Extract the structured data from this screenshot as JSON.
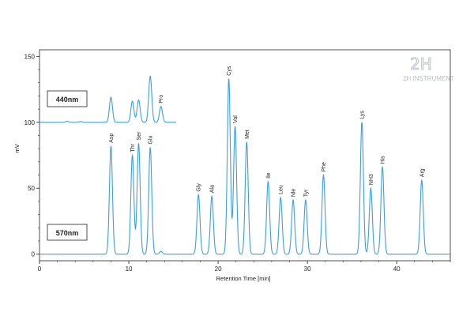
{
  "chart_data": {
    "type": "line",
    "title": "",
    "xlabel": "Retention Time [min]",
    "ylabel": "mV",
    "xlim": [
      0,
      46
    ],
    "ylim": [
      -5,
      155
    ],
    "x_ticks": [
      0,
      10,
      20,
      30,
      40
    ],
    "y_ticks": [
      0,
      50,
      100,
      150
    ],
    "grid": false,
    "legend": "none",
    "series": [
      {
        "name": "570nm",
        "color": "#3a9ee8",
        "baseline": 0,
        "peaks": [
          {
            "label": "Asp",
            "rt": 8.0,
            "height": 82
          },
          {
            "label": "Thr",
            "rt": 10.4,
            "height": 75
          },
          {
            "label": "Ser",
            "rt": 11.1,
            "height": 84
          },
          {
            "label": "Glu",
            "rt": 12.4,
            "height": 81
          },
          {
            "label": "",
            "rt": 13.6,
            "height": 2
          },
          {
            "label": "Gly",
            "rt": 17.8,
            "height": 45
          },
          {
            "label": "Ala",
            "rt": 19.3,
            "height": 44
          },
          {
            "label": "Cys",
            "rt": 21.2,
            "height": 133
          },
          {
            "label": "Val",
            "rt": 21.9,
            "height": 97
          },
          {
            "label": "Met",
            "rt": 23.2,
            "height": 85
          },
          {
            "label": "Ile",
            "rt": 25.6,
            "height": 55
          },
          {
            "label": "Leu",
            "rt": 27.0,
            "height": 43
          },
          {
            "label": "Nle",
            "rt": 28.4,
            "height": 41
          },
          {
            "label": "Tyr",
            "rt": 29.8,
            "height": 41
          },
          {
            "label": "Phe",
            "rt": 31.8,
            "height": 60
          },
          {
            "label": "Lys",
            "rt": 36.1,
            "height": 100
          },
          {
            "label": "NH3",
            "rt": 37.1,
            "height": 50
          },
          {
            "label": "His",
            "rt": 38.4,
            "height": 66
          },
          {
            "label": "Arg",
            "rt": 42.8,
            "height": 56
          }
        ]
      },
      {
        "name": "440nm",
        "color": "#3a9ee8",
        "baseline": 100,
        "x_range": [
          0,
          15.3
        ],
        "peaks": [
          {
            "label": "",
            "rt": 3.1,
            "height": 0.8
          },
          {
            "label": "",
            "rt": 4.6,
            "height": 0.6
          },
          {
            "label": "",
            "rt": 8.0,
            "height": 19
          },
          {
            "label": "",
            "rt": 10.4,
            "height": 16
          },
          {
            "label": "",
            "rt": 11.1,
            "height": 17
          },
          {
            "label": "",
            "rt": 12.4,
            "height": 35
          },
          {
            "label": "Pro",
            "rt": 13.6,
            "height": 12
          }
        ]
      }
    ],
    "annotations": [
      "440nm",
      "570nm"
    ]
  },
  "watermark": {
    "logo": "2H",
    "text": "2H INSTRUMENT"
  },
  "colors": {
    "trace": "#3a9ee8",
    "axis": "#222222",
    "watermark": "#b8bfc6"
  }
}
